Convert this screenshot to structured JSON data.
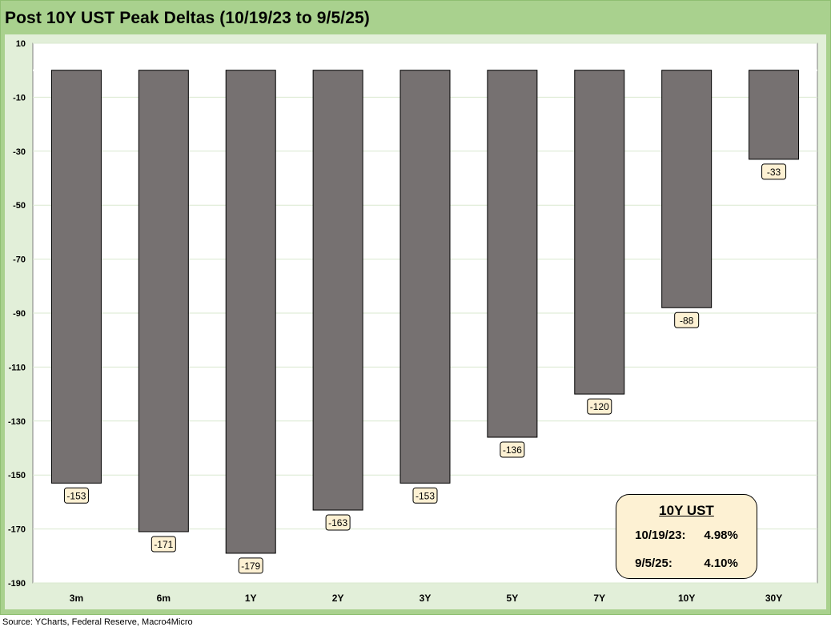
{
  "title": "Post 10Y UST Peak Deltas (10/19/23 to 9/5/25)",
  "source": "Source: YCharts, Federal Reserve, Macro4Micro",
  "colors": {
    "frame": "#a9d18e",
    "plot_background": "#e2efd9",
    "bar": "#767171",
    "label_fill": "#fdf1d3"
  },
  "info_box": {
    "heading": "10Y UST",
    "rows": [
      {
        "label": "10/19/23:",
        "value": "4.98%"
      },
      {
        "label": "9/5/25:",
        "value": "4.10%"
      }
    ]
  },
  "chart_data": {
    "type": "bar",
    "categories": [
      "3m",
      "6m",
      "1Y",
      "2Y",
      "3Y",
      "5Y",
      "7Y",
      "10Y",
      "30Y"
    ],
    "values": [
      -153,
      -171,
      -179,
      -163,
      -153,
      -136,
      -120,
      -88,
      -33
    ],
    "data_labels": [
      "-153",
      "-171",
      "-179",
      "-163",
      "-153",
      "-136",
      "-120",
      "-88",
      "-33"
    ],
    "ylim": [
      -190,
      10
    ],
    "yticks": [
      10,
      -10,
      -30,
      -50,
      -70,
      -90,
      -110,
      -130,
      -150,
      -170,
      -190
    ],
    "grid": true,
    "legend": "none"
  }
}
